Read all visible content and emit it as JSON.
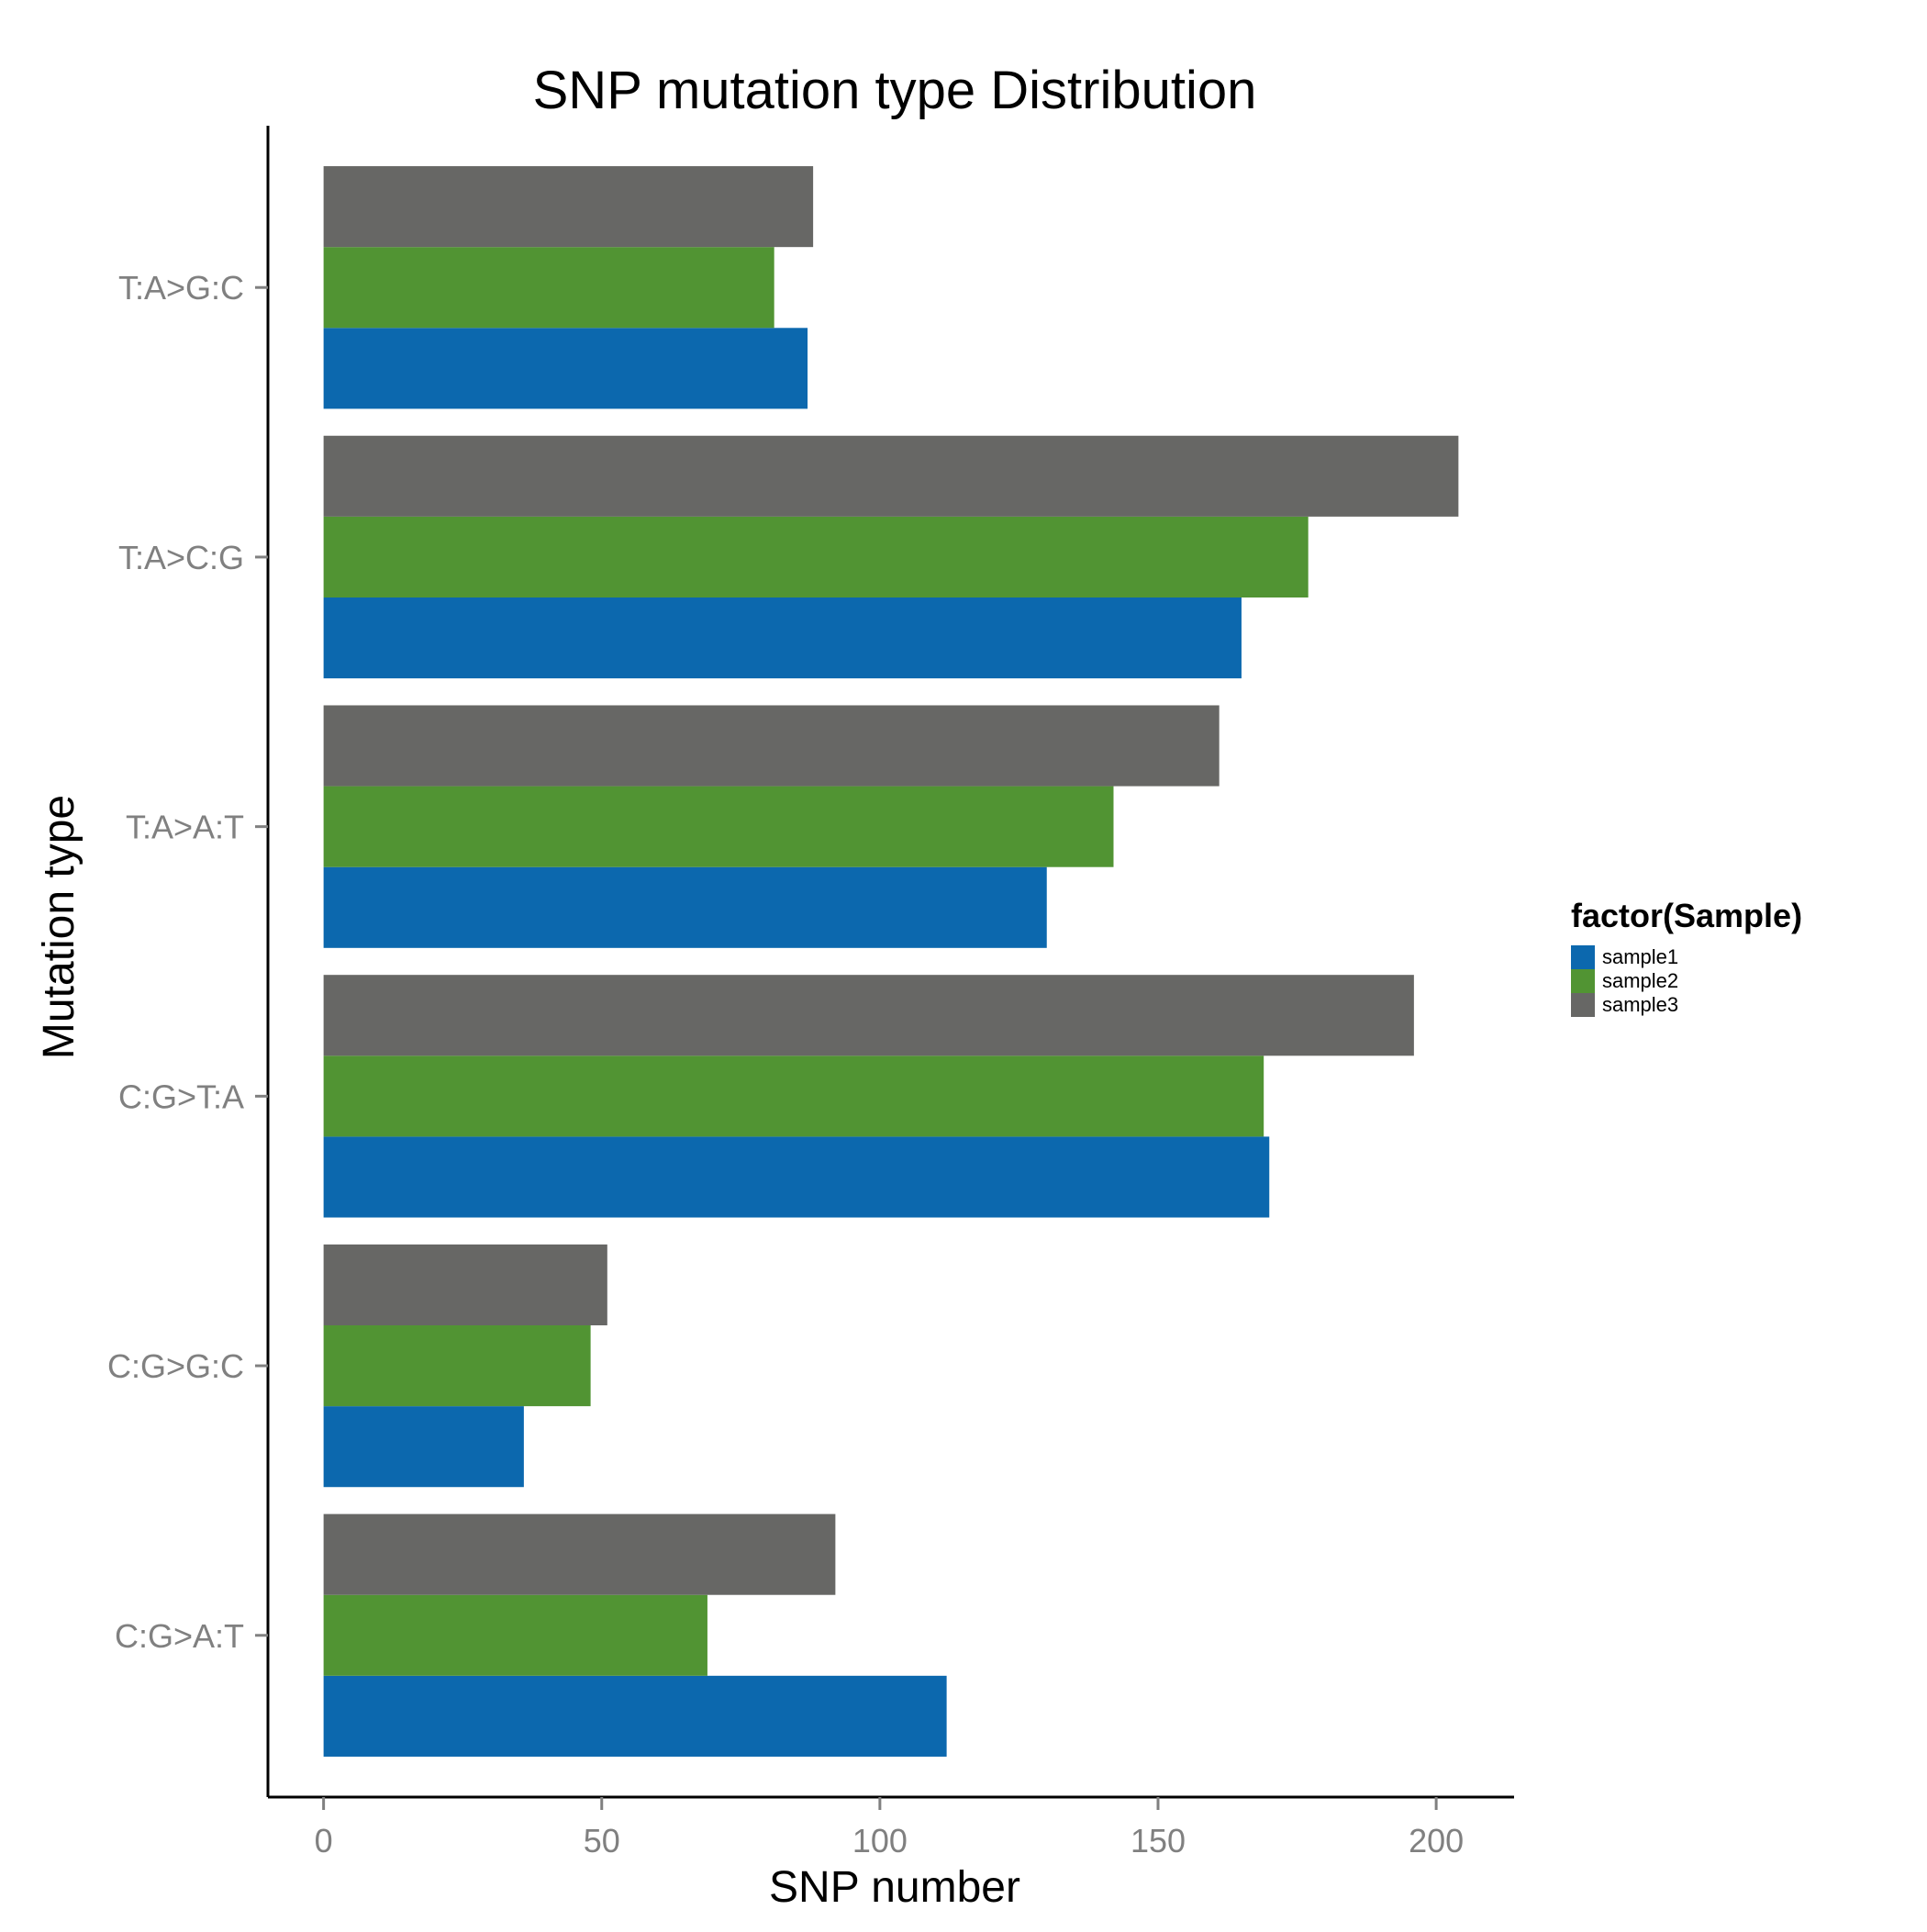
{
  "chart_data": {
    "type": "bar",
    "orientation": "horizontal",
    "title": "SNP mutation type Distribution",
    "xlabel": "SNP number",
    "ylabel": "Mutation type",
    "xlim": [
      -10,
      214
    ],
    "x_ticks": [
      0,
      50,
      100,
      150,
      200
    ],
    "categories": [
      "C:G>A:T",
      "C:G>G:C",
      "C:G>T:A",
      "T:A>A:T",
      "T:A>C:G",
      "T:A>G:C"
    ],
    "series": [
      {
        "name": "sample1",
        "color": "#0c68ae",
        "values": [
          112,
          36,
          170,
          130,
          165,
          87
        ]
      },
      {
        "name": "sample2",
        "color": "#519433",
        "values": [
          69,
          48,
          169,
          142,
          177,
          81
        ]
      },
      {
        "name": "sample3",
        "color": "#676765",
        "values": [
          92,
          51,
          196,
          161,
          204,
          88
        ]
      }
    ],
    "grid": false,
    "legend": {
      "title": "factor(Sample)",
      "placement": "right"
    }
  }
}
